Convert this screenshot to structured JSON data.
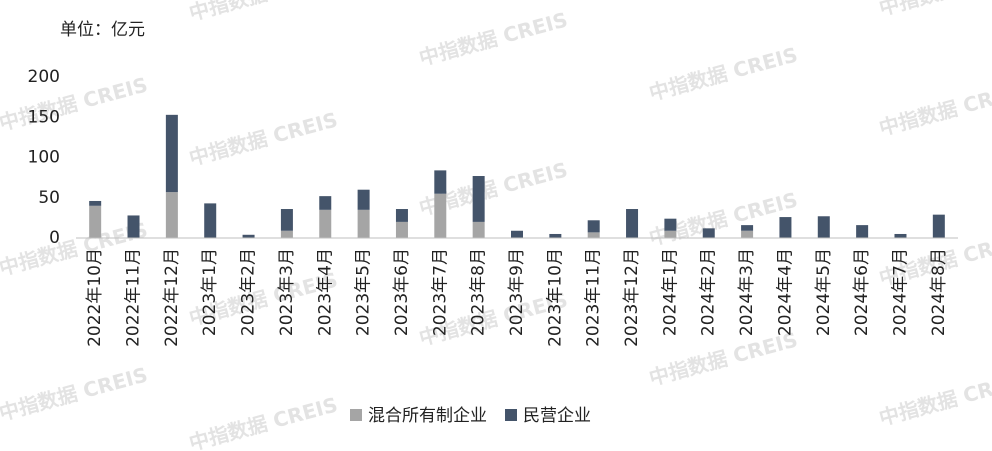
{
  "watermark": "中指数据 CREIS",
  "chart_data": {
    "type": "bar",
    "stacked": true,
    "unit_label": "单位：亿元",
    "categories": [
      "2022年10月",
      "2022年11月",
      "2022年12月",
      "2023年1月",
      "2023年2月",
      "2023年3月",
      "2023年4月",
      "2023年5月",
      "2023年6月",
      "2023年7月",
      "2023年8月",
      "2023年9月",
      "2023年10月",
      "2023年11月",
      "2023年12月",
      "2024年1月",
      "2024年2月",
      "2024年3月",
      "2024年4月",
      "2024年5月",
      "2024年6月",
      "2024年7月",
      "2024年8月"
    ],
    "series": [
      {
        "name": "混合所有制企业",
        "color": "#a5a5a5",
        "values": [
          40,
          0,
          57,
          0,
          0,
          9,
          35,
          35,
          20,
          55,
          20,
          0,
          0,
          7,
          0,
          9,
          0,
          9,
          0,
          0,
          0,
          0,
          0
        ]
      },
      {
        "name": "民营企业",
        "color": "#44546a",
        "values": [
          6,
          28,
          96,
          43,
          4,
          27,
          17,
          25,
          16,
          29,
          57,
          9,
          5,
          15,
          36,
          15,
          12,
          7,
          26,
          27,
          16,
          5,
          29
        ]
      }
    ],
    "ylim": [
      0,
      200
    ],
    "yticks": [
      0,
      50,
      100,
      150,
      200
    ],
    "grid": false,
    "legend": "bottom"
  }
}
